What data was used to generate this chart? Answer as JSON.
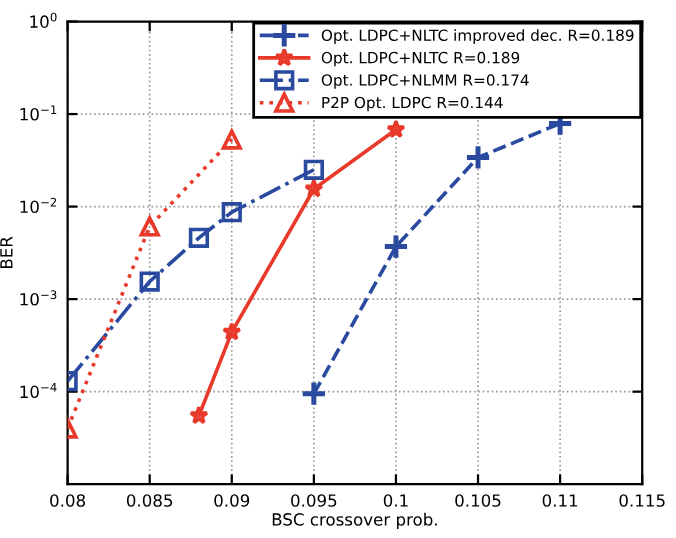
{
  "chart_data": {
    "type": "line",
    "xlabel": "BSC crossover prob.",
    "ylabel": "BER",
    "log": "y",
    "xlim": [
      0.08,
      0.115
    ],
    "xticks": [
      0.08,
      0.085,
      0.09,
      0.095,
      0.1,
      0.105,
      0.11,
      0.115
    ],
    "ylim": [
      1e-05,
      1
    ],
    "yticks": [
      {
        "value": 0.0001,
        "label": "10$^{−4}$"
      },
      {
        "value": 0.001,
        "label": "10$^{−3}$"
      },
      {
        "value": 0.01,
        "label": "10$^{−2}$"
      },
      {
        "value": 0.1,
        "label": "10$^{−1}$"
      },
      {
        "value": 1,
        "label": "10$^{0}$"
      }
    ],
    "grid": true,
    "legend": "top right",
    "series": [
      {
        "name": "Opt. LDPC+NLTC improved dec. R=0.189",
        "color": "#2a4aa0",
        "marker": "cross",
        "line_style": "dashed",
        "x": [
          0.095,
          0.1,
          0.105,
          0.11
        ],
        "values": [
          9.5e-05,
          0.0037,
          0.034,
          0.079
        ]
      },
      {
        "name": "Opt. LDPC+NLTC R=0.189",
        "color": "#e8392b",
        "marker": "star",
        "line_style": "solid",
        "x": [
          0.088,
          0.09,
          0.095,
          0.1
        ],
        "values": [
          5.5e-05,
          0.00044,
          0.0155,
          0.068
        ]
      },
      {
        "name": "Opt. LDPC+NLMM R=0.174",
        "color": "#2a4aa0",
        "marker": "square",
        "line_style": "dashdot",
        "x": [
          0.08,
          0.085,
          0.088,
          0.09,
          0.095
        ],
        "values": [
          0.00013,
          0.00155,
          0.0046,
          0.0087,
          0.025
        ]
      },
      {
        "name": "P2P Opt. LDPC R=0.144",
        "color": "#e8392b",
        "marker": "triangle",
        "line_style": "dotted",
        "x": [
          0.08,
          0.085,
          0.09
        ],
        "values": [
          4e-05,
          0.0061,
          0.053
        ]
      }
    ]
  }
}
